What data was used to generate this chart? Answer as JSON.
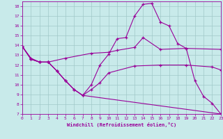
{
  "bg_color": "#c8eaea",
  "grid_color": "#a0c8c8",
  "line_color": "#990099",
  "xlabel": "Windchill (Refroidissement éolien,°C)",
  "xlim": [
    0,
    23
  ],
  "ylim": [
    7,
    18.5
  ],
  "yticks": [
    7,
    8,
    9,
    10,
    11,
    12,
    13,
    14,
    15,
    16,
    17,
    18
  ],
  "xticks": [
    0,
    1,
    2,
    3,
    4,
    5,
    6,
    7,
    8,
    9,
    10,
    11,
    12,
    13,
    14,
    15,
    16,
    17,
    18,
    19,
    20,
    21,
    22,
    23
  ],
  "line1_x": [
    0,
    1,
    2,
    3,
    5,
    8,
    10,
    11,
    13,
    14,
    16,
    19,
    23
  ],
  "line1_y": [
    13.9,
    12.7,
    12.3,
    12.3,
    12.7,
    13.2,
    13.3,
    13.5,
    13.8,
    14.8,
    13.6,
    13.7,
    13.6
  ],
  "line2_x": [
    0,
    1,
    2,
    3,
    4,
    5,
    6,
    7,
    8,
    9,
    10,
    11,
    12,
    13,
    14,
    15,
    16,
    17,
    18,
    19,
    20,
    21,
    22,
    23
  ],
  "line2_y": [
    13.9,
    12.6,
    12.3,
    12.3,
    11.4,
    10.4,
    9.5,
    8.9,
    10.0,
    12.0,
    13.1,
    14.7,
    14.8,
    17.0,
    18.2,
    18.3,
    16.4,
    16.0,
    14.2,
    13.7,
    10.4,
    8.8,
    8.1,
    7.0
  ],
  "line3_x": [
    0,
    1,
    2,
    3,
    4,
    5,
    6,
    7,
    23
  ],
  "line3_y": [
    13.9,
    12.6,
    12.3,
    12.3,
    11.4,
    10.4,
    9.5,
    8.9,
    7.0
  ],
  "line4_x": [
    0,
    1,
    2,
    3,
    4,
    5,
    6,
    7,
    8,
    9,
    10,
    13,
    16,
    19,
    22,
    23
  ],
  "line4_y": [
    13.9,
    12.6,
    12.3,
    12.3,
    11.4,
    10.4,
    9.5,
    8.9,
    9.5,
    10.2,
    11.2,
    11.9,
    12.0,
    12.0,
    11.8,
    11.5
  ]
}
